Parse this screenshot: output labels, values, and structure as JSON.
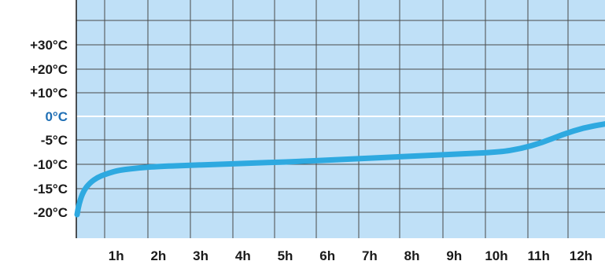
{
  "chart_data": {
    "type": "line",
    "title": "",
    "xlabel": "",
    "ylabel": "",
    "xlim": [
      0,
      12.5
    ],
    "y_ticks": [
      {
        "label": "+30°C",
        "value": 30
      },
      {
        "label": "+20°C",
        "value": 20
      },
      {
        "label": "+10°C",
        "value": 10
      },
      {
        "label": "0°C",
        "value": 0
      },
      {
        "label": "-5°C",
        "value": -5
      },
      {
        "label": "-10°C",
        "value": -10
      },
      {
        "label": "-15°C",
        "value": -15
      },
      {
        "label": "-20°C",
        "value": -20
      }
    ],
    "x_ticks": [
      {
        "label": "1h",
        "value": 1
      },
      {
        "label": "2h",
        "value": 2
      },
      {
        "label": "3h",
        "value": 3
      },
      {
        "label": "4h",
        "value": 4
      },
      {
        "label": "5h",
        "value": 5
      },
      {
        "label": "6h",
        "value": 6
      },
      {
        "label": "7h",
        "value": 7
      },
      {
        "label": "8h",
        "value": 8
      },
      {
        "label": "9h",
        "value": 9
      },
      {
        "label": "10h",
        "value": 10
      },
      {
        "label": "11h",
        "value": 11
      },
      {
        "label": "12h",
        "value": 12
      }
    ],
    "grid": true,
    "zero_line_color": "#ffffff",
    "zero_label_color": "#1f6fb5",
    "plot_background": "#bfe0f7",
    "series": [
      {
        "color": "#2ea9e0",
        "points": [
          {
            "x": 0.0,
            "y": -20.5
          },
          {
            "x": 0.05,
            "y": -18.0
          },
          {
            "x": 0.15,
            "y": -15.5
          },
          {
            "x": 0.3,
            "y": -13.8
          },
          {
            "x": 0.5,
            "y": -12.6
          },
          {
            "x": 0.75,
            "y": -11.8
          },
          {
            "x": 1.0,
            "y": -11.2
          },
          {
            "x": 1.5,
            "y": -10.7
          },
          {
            "x": 2.0,
            "y": -10.4
          },
          {
            "x": 3.0,
            "y": -10.1
          },
          {
            "x": 4.0,
            "y": -9.8
          },
          {
            "x": 5.0,
            "y": -9.5
          },
          {
            "x": 6.0,
            "y": -9.1
          },
          {
            "x": 7.0,
            "y": -8.7
          },
          {
            "x": 8.0,
            "y": -8.3
          },
          {
            "x": 9.0,
            "y": -7.9
          },
          {
            "x": 10.0,
            "y": -7.5
          },
          {
            "x": 10.5,
            "y": -6.8
          },
          {
            "x": 11.0,
            "y": -5.6
          },
          {
            "x": 11.5,
            "y": -3.8
          },
          {
            "x": 12.0,
            "y": -2.4
          },
          {
            "x": 12.5,
            "y": -1.6
          }
        ]
      }
    ]
  }
}
